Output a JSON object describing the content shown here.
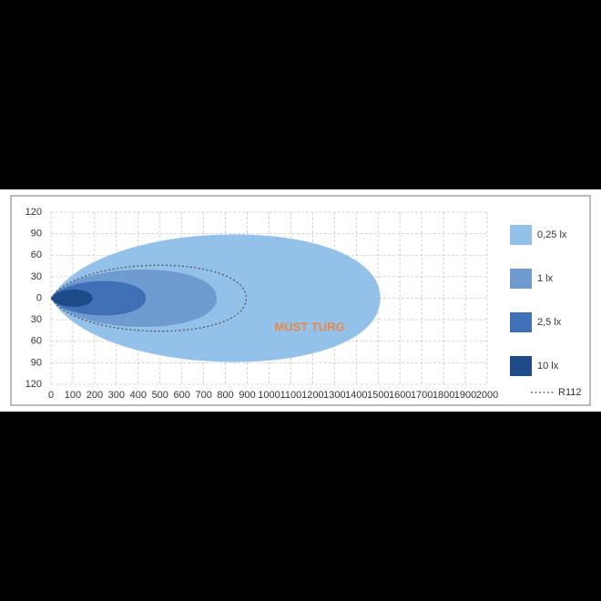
{
  "chart_data": {
    "type": "beam",
    "xlim": [
      0,
      2000
    ],
    "xticks": [
      0,
      100,
      200,
      300,
      400,
      500,
      600,
      700,
      800,
      900,
      1000,
      1100,
      1200,
      1300,
      1400,
      1500,
      1600,
      1700,
      1800,
      1900,
      2000
    ],
    "ylim": [
      -120,
      120
    ],
    "yticks": [
      {
        "value": 120,
        "label": "120"
      },
      {
        "value": 90,
        "label": "90"
      },
      {
        "value": 60,
        "label": "60"
      },
      {
        "value": 30,
        "label": "30"
      },
      0,
      {
        "value": -30,
        "label": "30"
      },
      {
        "value": -60,
        "label": "60"
      },
      {
        "value": -90,
        "label": "90"
      },
      {
        "value": -120,
        "label": "120"
      }
    ],
    "grid": true,
    "series": [
      {
        "name": "0,25 lx",
        "color": "#94c1ea",
        "reach": 1510,
        "width": 89
      },
      {
        "name": "1 lx",
        "color": "#6f9bd0",
        "reach": 760,
        "width": 40
      },
      {
        "name": "2,5 lx",
        "color": "#3f70b5",
        "reach": 435,
        "width": 24
      },
      {
        "name": "10 lx",
        "color": "#1d4b8a",
        "reach": 190,
        "width": 12
      }
    ],
    "reference": {
      "name": "R112",
      "color": "#555555",
      "reach": 895,
      "width": 46
    },
    "watermark": "MUST TURG"
  }
}
